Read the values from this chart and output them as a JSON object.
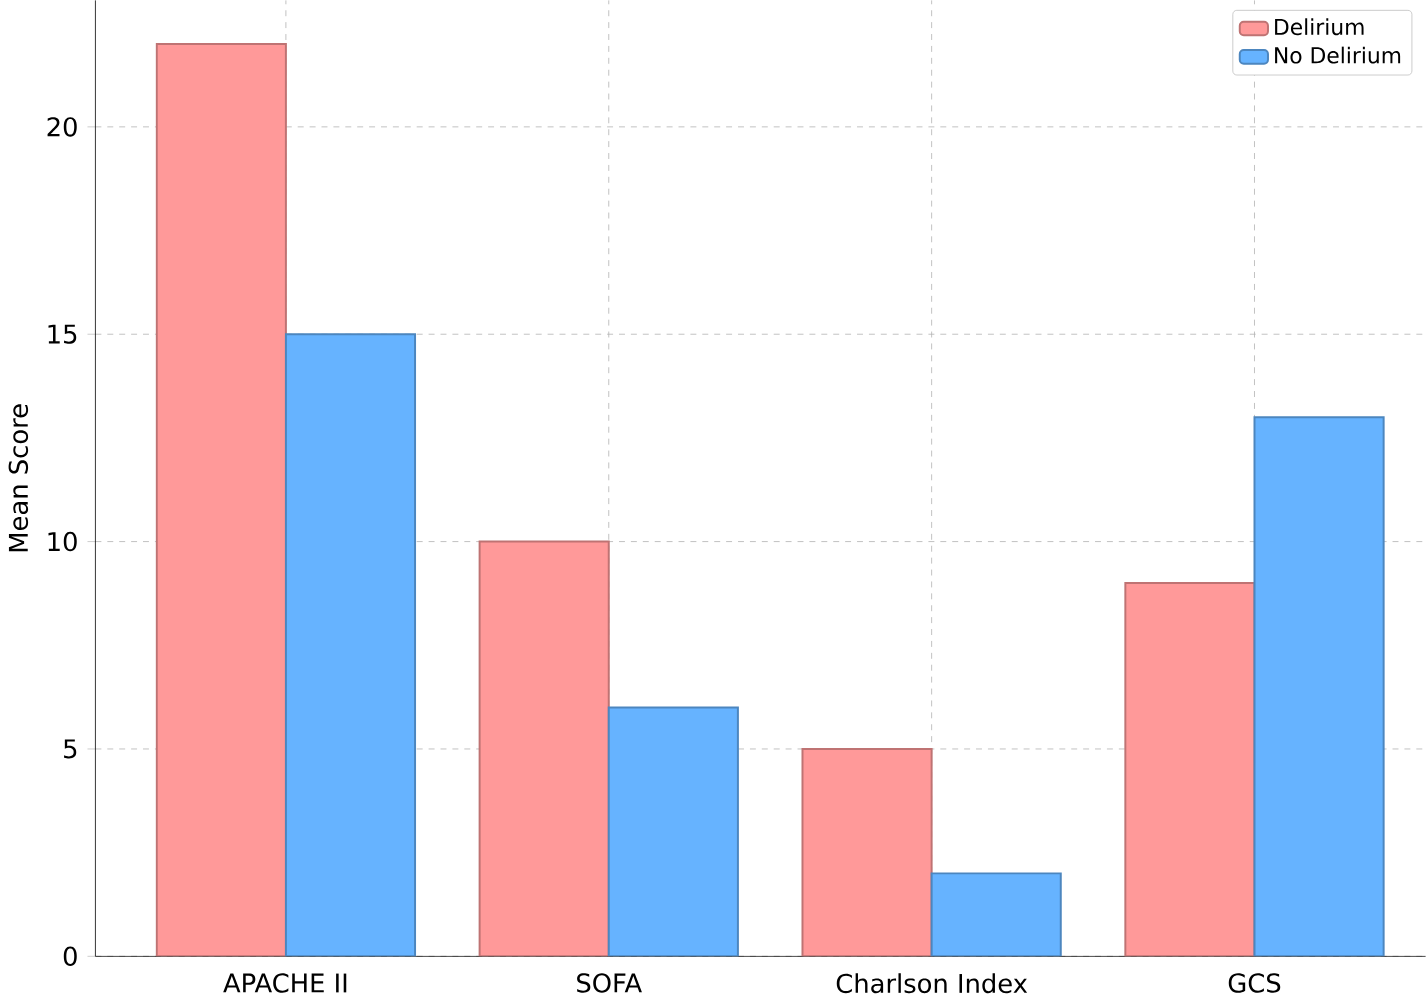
{
  "chart_data": {
    "type": "bar",
    "ylabel": "Mean Score",
    "categories": [
      "APACHE II",
      "SOFA",
      "Charlson Index",
      "GCS"
    ],
    "series": [
      {
        "name": "Delirium",
        "color": "#ff9999",
        "values": [
          22,
          10,
          5,
          9
        ]
      },
      {
        "name": "No Delirium",
        "color": "#66b3ff",
        "values": [
          15,
          6,
          2,
          13
        ]
      }
    ],
    "ylim": [
      0,
      23.05
    ],
    "yticks": [
      0,
      5,
      10,
      15,
      20
    ],
    "grid": true,
    "legend": "top right"
  }
}
